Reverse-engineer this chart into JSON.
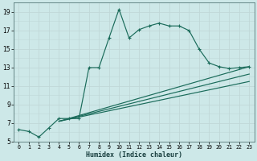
{
  "xlabel": "Humidex (Indice chaleur)",
  "ylabel": "",
  "bg_color": "#cde8e8",
  "line_color": "#1a6b5a",
  "grid_color": "#c0d8d8",
  "xlim": [
    -0.5,
    23.5
  ],
  "ylim": [
    5,
    20
  ],
  "xticks": [
    0,
    1,
    2,
    3,
    4,
    5,
    6,
    7,
    8,
    9,
    10,
    11,
    12,
    13,
    14,
    15,
    16,
    17,
    18,
    19,
    20,
    21,
    22,
    23
  ],
  "yticks": [
    5,
    7,
    9,
    11,
    13,
    15,
    17,
    19
  ],
  "main_x": [
    0,
    1,
    2,
    3,
    4,
    5,
    6,
    7,
    8,
    9,
    10,
    11,
    12,
    13,
    14,
    15,
    16,
    17,
    18,
    19,
    20,
    21,
    22,
    23
  ],
  "main_y": [
    6.3,
    6.1,
    5.5,
    6.5,
    7.5,
    7.5,
    7.5,
    13.0,
    13.0,
    16.2,
    19.3,
    16.2,
    17.1,
    17.5,
    17.8,
    17.5,
    17.5,
    17.0,
    15.0,
    13.5,
    13.1,
    12.9,
    13.0,
    13.1
  ],
  "line2_x": [
    4,
    23
  ],
  "line2_y": [
    7.2,
    13.1
  ],
  "line3_x": [
    4,
    23
  ],
  "line3_y": [
    7.2,
    12.3
  ],
  "line4_x": [
    4,
    23
  ],
  "line4_y": [
    7.2,
    11.5
  ]
}
